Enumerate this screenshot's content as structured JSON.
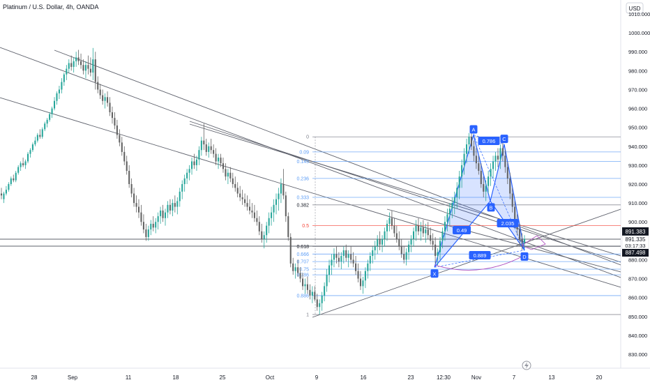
{
  "header": {
    "symbol_title": "Platinum / U.S. Dollar, 4h, OANDA",
    "currency": "USD"
  },
  "price_badges": {
    "upper": "891.383",
    "middle": "891.335",
    "countdown": "03:17:33",
    "lower": "887.498"
  },
  "icons": {
    "lightning": "lightning-icon"
  },
  "colors": {
    "candle_up": "#26a69a",
    "candle_down": "#616161",
    "trendline": "#5d606b",
    "fib_line": "#5b9cf6",
    "fib_label": "#5b9cf6",
    "fib_red": "#f44336",
    "harmonic": "#2962ff",
    "harmonic_fill": "rgba(41,98,255,0.18)",
    "badge_dark": "#131722",
    "badge_blue": "#2962ff"
  },
  "chart_data": {
    "type": "candlestick",
    "title": "Platinum / U.S. Dollar, 4h, OANDA",
    "y_axis": {
      "range": [
        825,
        1020
      ],
      "ticks": [
        "1010.000",
        "1000.000",
        "990.000",
        "980.000",
        "970.000",
        "960.000",
        "950.000",
        "940.000",
        "930.000",
        "920.000",
        "910.000",
        "900.000",
        "890.000",
        "880.000",
        "870.000",
        "860.000",
        "850.000",
        "840.000",
        "830.000"
      ]
    },
    "x_axis": {
      "ticks": [
        "28",
        "Sep",
        "11",
        "18",
        "25",
        "Oct",
        "9",
        "16",
        "23",
        "12:30",
        "Nov",
        "7",
        "13",
        "20"
      ]
    },
    "fib_levels": [
      "0",
      "0.09",
      "0.145",
      "0.236",
      "0.333",
      "0.382",
      "0.5",
      "0.618",
      "0.666",
      "0.707",
      "0.75",
      "0.786",
      "0.886",
      "1"
    ],
    "fib_prices": [
      945,
      937,
      932,
      923,
      913,
      909,
      898,
      887,
      883,
      879,
      875,
      872,
      861,
      851
    ],
    "harmonic_points": [
      {
        "label": "X",
        "price": 876
      },
      {
        "label": "A",
        "price": 946
      },
      {
        "label": "B",
        "price": 911
      },
      {
        "label": "C",
        "price": 941
      },
      {
        "label": "D",
        "price": 885
      }
    ],
    "harmonic_ratios": [
      "0.786",
      "0.49",
      "2.035",
      "0.889"
    ],
    "candles": [
      [
        915,
        912,
        918,
        914
      ],
      [
        912,
        910,
        916,
        915
      ],
      [
        915,
        914,
        919,
        917
      ],
      [
        917,
        916,
        921,
        920
      ],
      [
        920,
        919,
        924,
        923
      ],
      [
        923,
        921,
        925,
        922
      ],
      [
        922,
        921,
        927,
        926
      ],
      [
        926,
        925,
        930,
        929
      ],
      [
        929,
        927,
        932,
        931
      ],
      [
        931,
        929,
        934,
        930
      ],
      [
        930,
        928,
        933,
        932
      ],
      [
        932,
        931,
        937,
        936
      ],
      [
        936,
        934,
        939,
        938
      ],
      [
        938,
        937,
        942,
        941
      ],
      [
        941,
        940,
        945,
        943
      ],
      [
        943,
        942,
        947,
        946
      ],
      [
        946,
        944,
        949,
        945
      ],
      [
        945,
        944,
        950,
        949
      ],
      [
        949,
        948,
        953,
        952
      ],
      [
        952,
        950,
        955,
        954
      ],
      [
        954,
        953,
        958,
        957
      ],
      [
        957,
        955,
        961,
        960
      ],
      [
        960,
        959,
        966,
        964
      ],
      [
        964,
        962,
        969,
        968
      ],
      [
        968,
        965,
        972,
        970
      ],
      [
        970,
        968,
        976,
        974
      ],
      [
        974,
        972,
        979,
        978
      ],
      [
        978,
        975,
        983,
        981
      ],
      [
        981,
        979,
        986,
        984
      ],
      [
        984,
        980,
        988,
        982
      ],
      [
        982,
        979,
        987,
        985
      ],
      [
        985,
        982,
        990,
        987
      ],
      [
        987,
        983,
        991,
        985
      ],
      [
        985,
        981,
        989,
        983
      ],
      [
        983,
        978,
        986,
        980
      ],
      [
        980,
        976,
        985,
        983
      ],
      [
        983,
        978,
        988,
        981
      ],
      [
        981,
        977,
        987,
        979
      ],
      [
        979,
        975,
        992,
        986
      ],
      [
        986,
        970,
        990,
        974
      ],
      [
        974,
        968,
        977,
        970
      ],
      [
        970,
        965,
        973,
        967
      ],
      [
        967,
        962,
        970,
        964
      ],
      [
        964,
        960,
        968,
        966
      ],
      [
        966,
        961,
        969,
        963
      ],
      [
        963,
        956,
        966,
        958
      ],
      [
        958,
        952,
        961,
        955
      ],
      [
        955,
        949,
        958,
        951
      ],
      [
        951,
        944,
        954,
        946
      ],
      [
        946,
        940,
        949,
        942
      ],
      [
        942,
        935,
        945,
        937
      ],
      [
        937,
        930,
        940,
        932
      ],
      [
        932,
        925,
        935,
        927
      ],
      [
        927,
        918,
        930,
        920
      ],
      [
        920,
        913,
        923,
        915
      ],
      [
        915,
        908,
        918,
        910
      ],
      [
        910,
        905,
        914,
        908
      ],
      [
        908,
        902,
        912,
        905
      ],
      [
        905,
        898,
        909,
        900
      ],
      [
        900,
        894,
        904,
        896
      ],
      [
        896,
        890,
        899,
        892
      ],
      [
        892,
        890,
        898,
        896
      ],
      [
        896,
        893,
        901,
        899
      ],
      [
        899,
        895,
        903,
        897
      ],
      [
        897,
        894,
        902,
        900
      ],
      [
        900,
        896,
        905,
        903
      ],
      [
        903,
        899,
        908,
        906
      ],
      [
        906,
        900,
        909,
        902
      ],
      [
        902,
        898,
        907,
        905
      ],
      [
        905,
        902,
        911,
        909
      ],
      [
        909,
        904,
        912,
        906
      ],
      [
        906,
        903,
        912,
        910
      ],
      [
        910,
        905,
        914,
        908
      ],
      [
        908,
        904,
        913,
        911
      ],
      [
        911,
        908,
        918,
        916
      ],
      [
        916,
        912,
        922,
        920
      ],
      [
        920,
        916,
        925,
        923
      ],
      [
        923,
        920,
        928,
        926
      ],
      [
        926,
        922,
        930,
        928
      ],
      [
        928,
        925,
        934,
        932
      ],
      [
        932,
        928,
        936,
        930
      ],
      [
        930,
        927,
        935,
        933
      ],
      [
        933,
        930,
        940,
        938
      ],
      [
        938,
        935,
        945,
        943
      ],
      [
        943,
        938,
        952,
        941
      ],
      [
        941,
        935,
        944,
        937
      ],
      [
        937,
        934,
        942,
        940
      ],
      [
        940,
        936,
        944,
        938
      ],
      [
        938,
        934,
        941,
        936
      ],
      [
        936,
        930,
        939,
        932
      ],
      [
        932,
        928,
        936,
        934
      ],
      [
        934,
        929,
        936,
        931
      ],
      [
        931,
        926,
        934,
        928
      ],
      [
        928,
        922,
        931,
        924
      ],
      [
        924,
        920,
        928,
        926
      ],
      [
        926,
        921,
        929,
        923
      ],
      [
        923,
        918,
        926,
        920
      ],
      [
        920,
        916,
        924,
        918
      ],
      [
        918,
        913,
        921,
        915
      ],
      [
        915,
        911,
        919,
        913
      ],
      [
        913,
        909,
        917,
        912
      ],
      [
        912,
        908,
        915,
        910
      ],
      [
        910,
        906,
        914,
        908
      ],
      [
        908,
        904,
        912,
        906
      ],
      [
        906,
        902,
        910,
        905
      ],
      [
        905,
        900,
        909,
        902
      ],
      [
        902,
        898,
        906,
        900
      ],
      [
        900,
        893,
        903,
        895
      ],
      [
        895,
        889,
        899,
        891
      ],
      [
        891,
        886,
        895,
        893
      ],
      [
        893,
        889,
        900,
        898
      ],
      [
        898,
        894,
        905,
        902
      ],
      [
        902,
        898,
        908,
        905
      ],
      [
        905,
        900,
        912,
        909
      ],
      [
        909,
        904,
        915,
        912
      ],
      [
        912,
        906,
        918,
        915
      ],
      [
        915,
        910,
        923,
        920
      ],
      [
        920,
        912,
        928,
        914
      ],
      [
        914,
        900,
        916,
        903
      ],
      [
        903,
        890,
        905,
        892
      ],
      [
        892,
        876,
        894,
        878
      ],
      [
        878,
        872,
        881,
        874
      ],
      [
        874,
        870,
        878,
        876
      ],
      [
        876,
        871,
        880,
        873
      ],
      [
        873,
        868,
        876,
        870
      ],
      [
        870,
        864,
        873,
        866
      ],
      [
        866,
        862,
        870,
        867
      ],
      [
        867,
        862,
        871,
        864
      ],
      [
        864,
        859,
        867,
        861
      ],
      [
        861,
        857,
        866,
        863
      ],
      [
        863,
        858,
        866,
        859
      ],
      [
        859,
        853,
        862,
        855
      ],
      [
        855,
        851,
        859,
        857
      ],
      [
        857,
        853,
        863,
        861
      ],
      [
        861,
        858,
        868,
        866
      ],
      [
        866,
        863,
        875,
        872
      ],
      [
        872,
        868,
        880,
        877
      ],
      [
        877,
        872,
        883,
        880
      ],
      [
        880,
        876,
        886,
        883
      ],
      [
        883,
        878,
        887,
        881
      ],
      [
        881,
        876,
        884,
        879
      ],
      [
        879,
        875,
        884,
        882
      ],
      [
        882,
        878,
        887,
        885
      ],
      [
        885,
        879,
        888,
        881
      ],
      [
        881,
        876,
        885,
        883
      ],
      [
        883,
        878,
        887,
        880
      ],
      [
        880,
        876,
        884,
        878
      ],
      [
        878,
        872,
        882,
        874
      ],
      [
        874,
        868,
        878,
        870
      ],
      [
        870,
        864,
        874,
        866
      ],
      [
        866,
        862,
        871,
        869
      ],
      [
        869,
        865,
        876,
        874
      ],
      [
        874,
        870,
        880,
        878
      ],
      [
        878,
        874,
        884,
        882
      ],
      [
        882,
        878,
        887,
        885
      ],
      [
        885,
        880,
        890,
        887
      ],
      [
        887,
        883,
        893,
        891
      ],
      [
        891,
        885,
        895,
        888
      ],
      [
        888,
        884,
        893,
        891
      ],
      [
        891,
        887,
        897,
        895
      ],
      [
        895,
        890,
        901,
        899
      ],
      [
        899,
        895,
        905,
        902
      ],
      [
        902,
        896,
        906,
        898
      ],
      [
        898,
        892,
        902,
        894
      ],
      [
        894,
        889,
        898,
        891
      ],
      [
        891,
        885,
        895,
        887
      ],
      [
        887,
        881,
        891,
        883
      ],
      [
        883,
        878,
        887,
        880
      ],
      [
        880,
        877,
        886,
        884
      ],
      [
        884,
        880,
        890,
        888
      ],
      [
        888,
        884,
        893,
        891
      ],
      [
        891,
        887,
        897,
        895
      ],
      [
        895,
        890,
        901,
        898
      ],
      [
        898,
        893,
        902,
        895
      ],
      [
        895,
        890,
        900,
        897
      ],
      [
        897,
        892,
        901,
        894
      ],
      [
        894,
        889,
        899,
        896
      ],
      [
        896,
        891,
        900,
        893
      ],
      [
        893,
        888,
        897,
        890
      ],
      [
        890,
        885,
        894,
        888
      ],
      [
        888,
        878,
        892,
        882
      ],
      [
        882,
        877,
        886,
        884
      ],
      [
        884,
        880,
        892,
        890
      ],
      [
        890,
        886,
        897,
        895
      ],
      [
        895,
        890,
        903,
        900
      ],
      [
        900,
        895,
        907,
        904
      ],
      [
        904,
        898,
        910,
        907
      ],
      [
        907,
        902,
        913,
        910
      ],
      [
        910,
        904,
        916,
        913
      ],
      [
        913,
        907,
        921,
        918
      ],
      [
        918,
        912,
        927,
        924
      ],
      [
        924,
        918,
        933,
        930
      ],
      [
        930,
        925,
        939,
        936
      ],
      [
        936,
        931,
        944,
        941
      ],
      [
        941,
        936,
        947,
        945
      ],
      [
        945,
        938,
        948,
        940
      ],
      [
        940,
        932,
        943,
        935
      ],
      [
        935,
        928,
        939,
        931
      ],
      [
        931,
        925,
        935,
        927
      ],
      [
        927,
        918,
        931,
        920
      ],
      [
        920,
        913,
        924,
        916
      ],
      [
        916,
        911,
        922,
        919
      ],
      [
        919,
        915,
        927,
        924
      ],
      [
        924,
        919,
        931,
        928
      ],
      [
        928,
        923,
        935,
        932
      ],
      [
        932,
        927,
        937,
        935
      ],
      [
        935,
        929,
        939,
        933
      ],
      [
        933,
        928,
        941,
        939
      ],
      [
        939,
        932,
        942,
        935
      ],
      [
        935,
        926,
        938,
        929
      ],
      [
        929,
        920,
        932,
        923
      ],
      [
        923,
        912,
        926,
        915
      ],
      [
        915,
        905,
        918,
        908
      ],
      [
        908,
        898,
        911,
        901
      ],
      [
        901,
        893,
        904,
        896
      ],
      [
        896,
        887,
        899,
        891
      ],
      [
        891,
        885,
        894,
        889
      ],
      [
        889,
        886,
        893,
        891
      ]
    ]
  }
}
